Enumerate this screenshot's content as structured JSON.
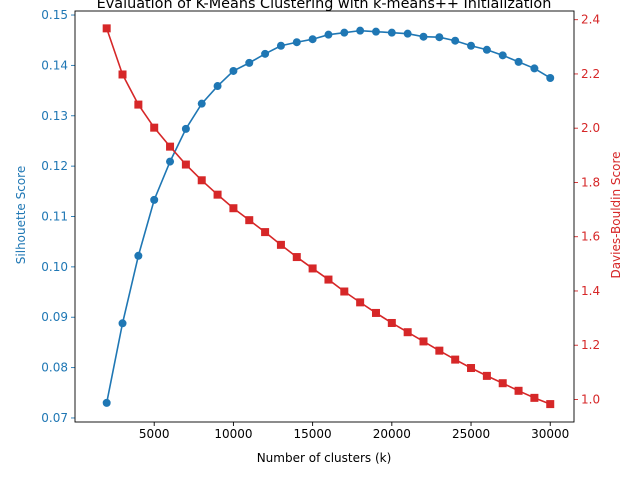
{
  "chart_data": {
    "type": "line",
    "title": "Evaluation of K-Means Clustering with k-means++ Initialization",
    "xlabel": "Number of clusters (k)",
    "ylabel_left": "Silhouette Score",
    "ylabel_right": "Davies-Bouldin Score",
    "grid": false,
    "x": [
      2000,
      3000,
      4000,
      5000,
      6000,
      7000,
      8000,
      9000,
      10000,
      11000,
      12000,
      13000,
      14000,
      15000,
      16000,
      17000,
      18000,
      19000,
      20000,
      21000,
      22000,
      23000,
      24000,
      25000,
      26000,
      27000,
      28000,
      29000,
      30000
    ],
    "xlim": [
      0,
      31500
    ],
    "x_ticks": [
      5000,
      10000,
      15000,
      20000,
      25000,
      30000
    ],
    "x_tick_labels": [
      "5000",
      "10000",
      "15000",
      "20000",
      "25000",
      "30000"
    ],
    "ylim_left": [
      0.0692,
      0.1508
    ],
    "y_ticks_left": [
      0.07,
      0.08,
      0.09,
      0.1,
      0.11,
      0.12,
      0.13,
      0.14,
      0.15
    ],
    "y_tick_labels_left": [
      "0.07",
      "0.08",
      "0.09",
      "0.10",
      "0.11",
      "0.12",
      "0.13",
      "0.14",
      "0.15"
    ],
    "ylim_right": [
      0.917,
      2.432
    ],
    "y_ticks_right": [
      1.0,
      1.2,
      1.4,
      1.6,
      1.8,
      2.0,
      2.2,
      2.4
    ],
    "y_tick_labels_right": [
      "1.0",
      "1.2",
      "1.4",
      "1.6",
      "1.8",
      "2.0",
      "2.2",
      "2.4"
    ],
    "series": [
      {
        "axis": "left",
        "color": "#1f77b4",
        "marker": "circle",
        "values": [
          0.073,
          0.0888,
          0.1022,
          0.1133,
          0.1209,
          0.1274,
          0.1324,
          0.1359,
          0.1389,
          0.1405,
          0.1423,
          0.1439,
          0.1446,
          0.1452,
          0.1461,
          0.1465,
          0.1469,
          0.1467,
          0.1465,
          0.1463,
          0.1457,
          0.1456,
          0.1449,
          0.1439,
          0.1431,
          0.142,
          0.1407,
          0.1394,
          0.1375
        ]
      },
      {
        "axis": "right",
        "color": "#d62728",
        "marker": "square",
        "values": [
          2.368,
          2.198,
          2.087,
          2.002,
          1.932,
          1.866,
          1.808,
          1.755,
          1.705,
          1.661,
          1.617,
          1.57,
          1.525,
          1.483,
          1.442,
          1.398,
          1.358,
          1.319,
          1.282,
          1.248,
          1.214,
          1.18,
          1.147,
          1.116,
          1.087,
          1.06,
          1.032,
          1.006,
          0.983
        ]
      }
    ]
  }
}
